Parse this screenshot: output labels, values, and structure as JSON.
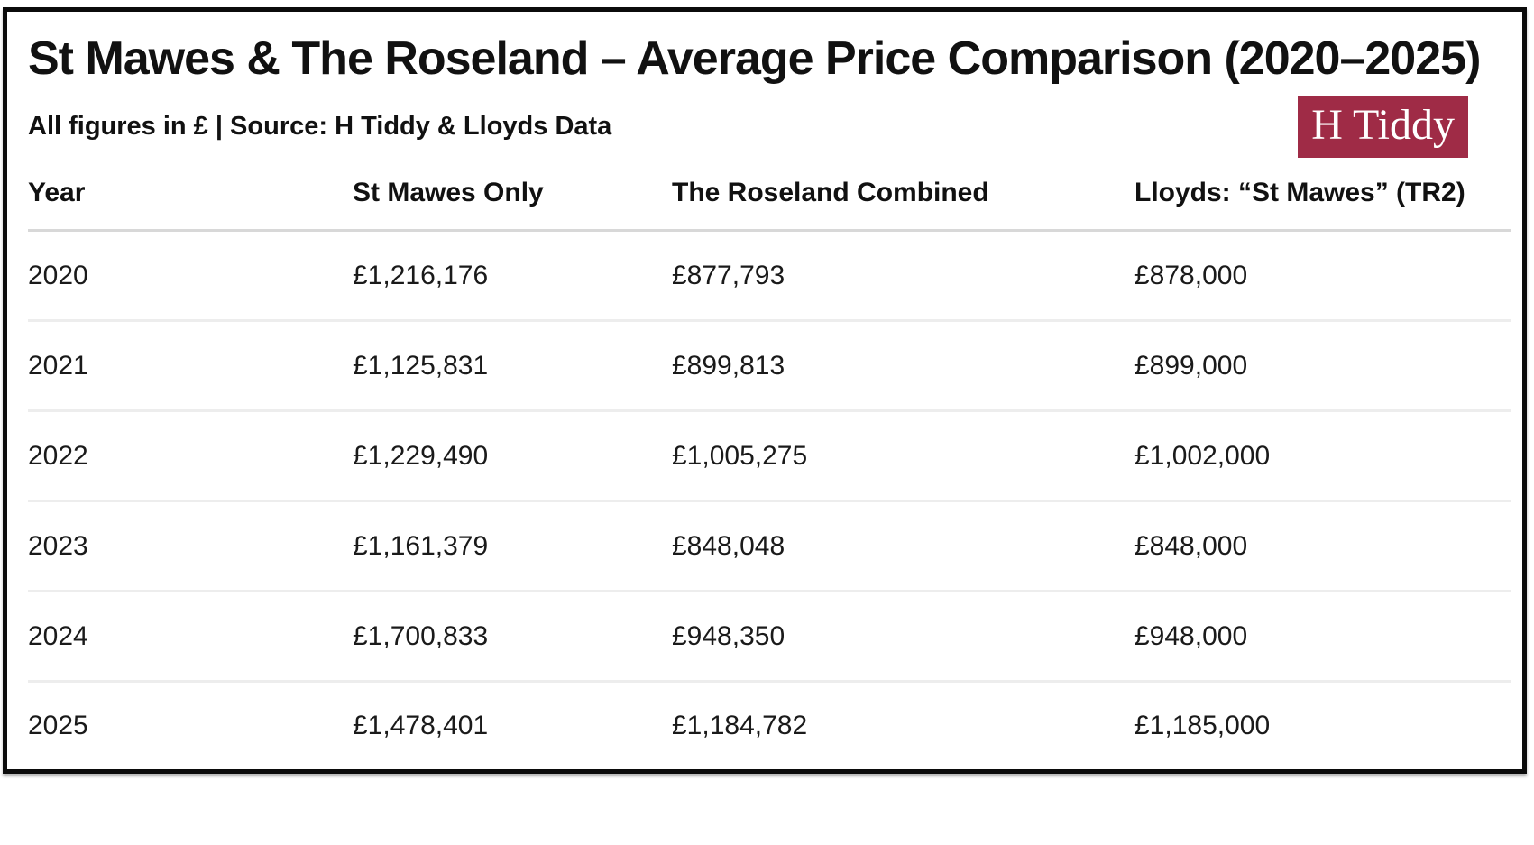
{
  "header": {
    "title": "St Mawes & The Roseland – Average Price Comparison (2020–2025)",
    "subtitle": "All figures in £ | Source: H Tiddy & Lloyds Data",
    "logo_text": "H Tiddy",
    "logo_bg_color": "#9f2b46",
    "logo_text_color": "#ffffff"
  },
  "table": {
    "columns": [
      "Year",
      "St Mawes Only",
      "The Roseland Combined",
      "Lloyds: “St Mawes” (TR2)"
    ],
    "rows": [
      [
        "2020",
        "£1,216,176",
        "£877,793",
        "£878,000"
      ],
      [
        "2021",
        "£1,125,831",
        "£899,813",
        "£899,000"
      ],
      [
        "2022",
        "£1,229,490",
        "£1,005,275",
        "£1,002,000"
      ],
      [
        "2023",
        "£1,161,379",
        "£848,048",
        "£848,000"
      ],
      [
        "2024",
        "£1,700,833",
        "£948,350",
        "£948,000"
      ],
      [
        "2025",
        "£1,478,401",
        "£1,184,782",
        "£1,185,000"
      ]
    ]
  },
  "chart_data": {
    "type": "table",
    "title": "St Mawes & The Roseland – Average Price Comparison (2020–2025)",
    "subtitle": "All figures in £ | Source: H Tiddy & Lloyds Data",
    "unit": "£",
    "categories": [
      "2020",
      "2021",
      "2022",
      "2023",
      "2024",
      "2025"
    ],
    "series": [
      {
        "name": "St Mawes Only",
        "values": [
          1216176,
          1125831,
          1229490,
          1161379,
          1700833,
          1478401
        ]
      },
      {
        "name": "The Roseland Combined",
        "values": [
          877793,
          899813,
          1005275,
          848048,
          948350,
          1184782
        ]
      },
      {
        "name": "Lloyds: “St Mawes” (TR2)",
        "values": [
          878000,
          899000,
          1002000,
          848000,
          948000,
          1185000
        ]
      }
    ]
  }
}
